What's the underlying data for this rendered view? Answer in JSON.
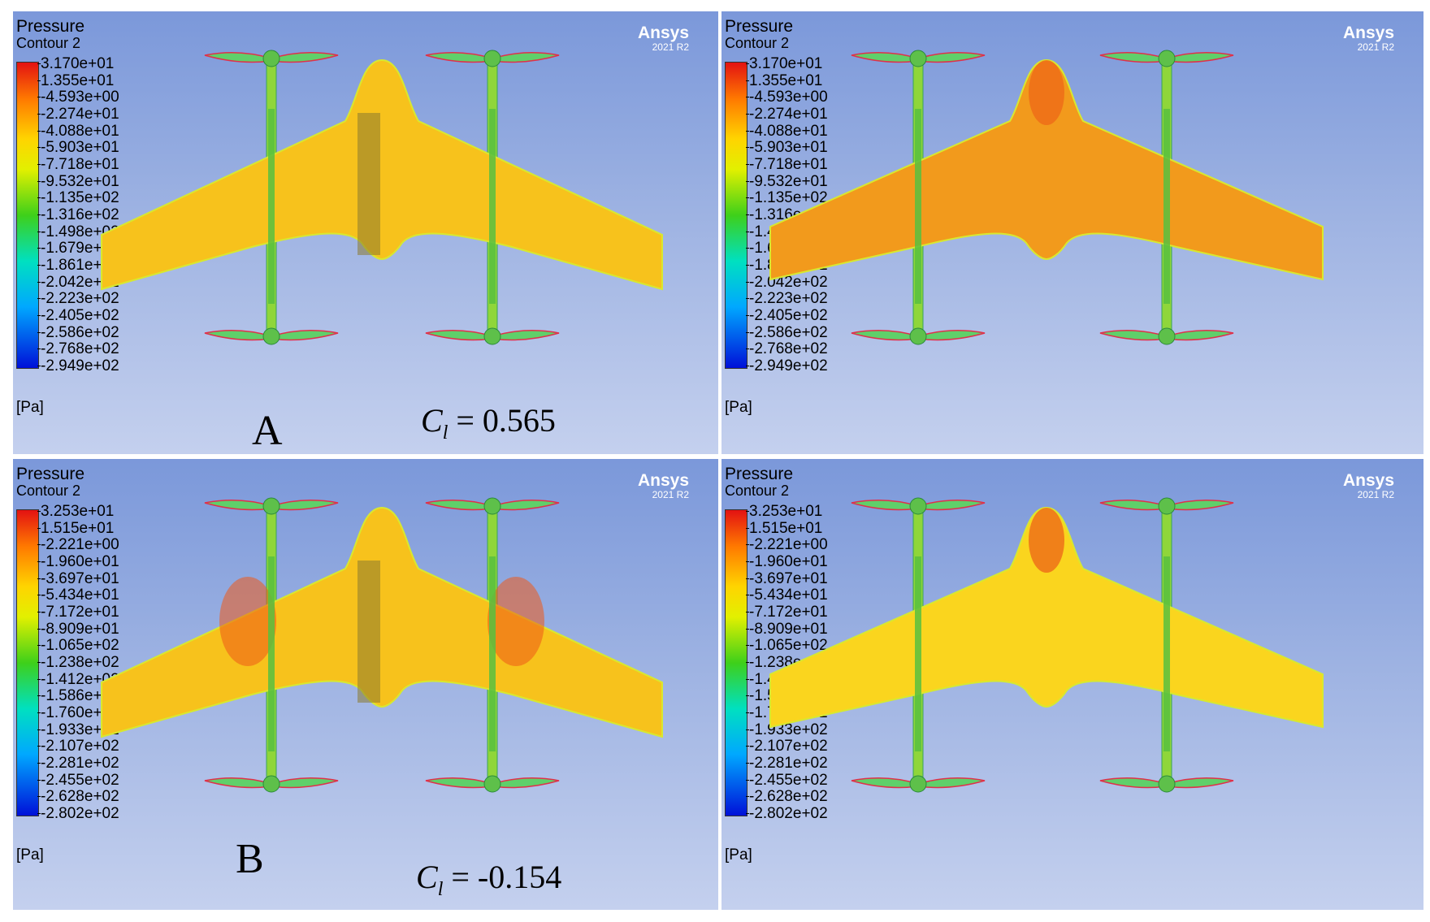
{
  "panels": [
    {
      "title": "Pressure",
      "subtitle": "Contour 2",
      "brand": "Ansys",
      "version": "2021 R2",
      "unit": "[Pa]",
      "ticks": [
        "3.170e+01",
        "1.355e+01",
        "-4.593e+00",
        "-2.274e+01",
        "-4.088e+01",
        "-5.903e+01",
        "-7.718e+01",
        "-9.532e+01",
        "-1.135e+02",
        "-1.316e+02",
        "-1.498e+02",
        "-1.679e+02",
        "-1.861e+02",
        "-2.042e+02",
        "-2.223e+02",
        "-2.405e+02",
        "-2.586e+02",
        "-2.768e+02",
        "-2.949e+02"
      ],
      "surface_color": "#f7c21c"
    },
    {
      "title": "Pressure",
      "subtitle": "Contour 2",
      "brand": "Ansys",
      "version": "2021 R2",
      "unit": "[Pa]",
      "ticks": [
        "3.170e+01",
        "1.355e+01",
        "-4.593e+00",
        "-2.274e+01",
        "-4.088e+01",
        "-5.903e+01",
        "-7.718e+01",
        "-9.532e+01",
        "-1.135e+02",
        "-1.316e+02",
        "-1.498e+02",
        "-1.679e+02",
        "-1.861e+02",
        "-2.042e+02",
        "-2.223e+02",
        "-2.405e+02",
        "-2.586e+02",
        "-2.768e+02",
        "-2.949e+02"
      ],
      "surface_color": "#f29a1c"
    },
    {
      "title": "Pressure",
      "subtitle": "Contour 2",
      "brand": "Ansys",
      "version": "2021 R2",
      "unit": "[Pa]",
      "ticks": [
        "3.253e+01",
        "1.515e+01",
        "-2.221e+00",
        "-1.960e+01",
        "-3.697e+01",
        "-5.434e+01",
        "-7.172e+01",
        "-8.909e+01",
        "-1.065e+02",
        "-1.238e+02",
        "-1.412e+02",
        "-1.586e+02",
        "-1.760e+02",
        "-1.933e+02",
        "-2.107e+02",
        "-2.281e+02",
        "-2.455e+02",
        "-2.628e+02",
        "-2.802e+02"
      ],
      "surface_color": "#f7c21c"
    },
    {
      "title": "Pressure",
      "subtitle": "Contour 2",
      "brand": "Ansys",
      "version": "2021 R2",
      "unit": "[Pa]",
      "ticks": [
        "3.253e+01",
        "1.515e+01",
        "-2.221e+00",
        "-1.960e+01",
        "-3.697e+01",
        "-5.434e+01",
        "-7.172e+01",
        "-8.909e+01",
        "-1.065e+02",
        "-1.238e+02",
        "-1.412e+02",
        "-1.586e+02",
        "-1.760e+02",
        "-1.933e+02",
        "-2.107e+02",
        "-2.281e+02",
        "-2.455e+02",
        "-2.628e+02",
        "-2.802e+02"
      ],
      "surface_color": "#fad51e"
    }
  ],
  "labels": {
    "a": "A",
    "b": "B",
    "coef_symbol": "C",
    "coef_sub": "l",
    "coef_eq": " = ",
    "coef_a": "0.565",
    "coef_b": "-0.154"
  }
}
